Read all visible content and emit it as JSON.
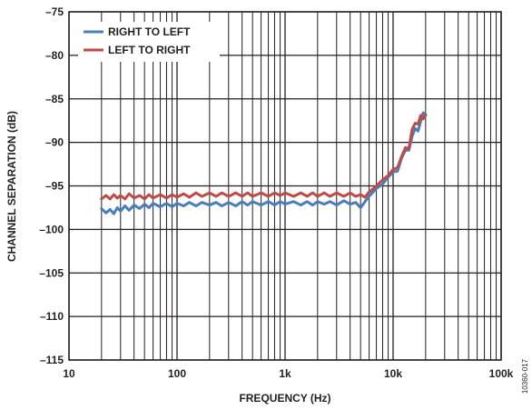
{
  "chart_data": {
    "type": "line",
    "xlabel": "FREQUENCY (Hz)",
    "ylabel": "CHANNEL SEPARATION (dB)",
    "x_scale": "log",
    "xlim": [
      10,
      100000
    ],
    "ylim": [
      -115,
      -75
    ],
    "x_ticks": [
      10,
      100,
      1000,
      10000,
      100000
    ],
    "x_tick_labels": [
      "10",
      "100",
      "1k",
      "10k",
      "100k"
    ],
    "y_ticks": [
      -75,
      -80,
      -85,
      -90,
      -95,
      -100,
      -105,
      -110,
      -115
    ],
    "y_tick_labels": [
      "–75",
      "–80",
      "–85",
      "–90",
      "–95",
      "–100",
      "–105",
      "–110",
      "–115"
    ],
    "grid": true,
    "legend_position": "top-left",
    "figure_id": "10360-017",
    "series": [
      {
        "name": "RIGHT TO LEFT",
        "color": "#4a7ebb",
        "points": [
          [
            20,
            -97.6
          ],
          [
            22,
            -98.1
          ],
          [
            24,
            -97.7
          ],
          [
            26,
            -98.2
          ],
          [
            28,
            -97.5
          ],
          [
            30,
            -97.9
          ],
          [
            33,
            -97.3
          ],
          [
            36,
            -97.8
          ],
          [
            40,
            -97.2
          ],
          [
            45,
            -97.6
          ],
          [
            50,
            -97.1
          ],
          [
            55,
            -97.5
          ],
          [
            60,
            -97.0
          ],
          [
            70,
            -97.4
          ],
          [
            80,
            -97.0
          ],
          [
            90,
            -97.4
          ],
          [
            100,
            -97.0
          ],
          [
            115,
            -97.3
          ],
          [
            130,
            -96.9
          ],
          [
            150,
            -97.3
          ],
          [
            170,
            -96.9
          ],
          [
            200,
            -97.2
          ],
          [
            230,
            -96.9
          ],
          [
            260,
            -97.3
          ],
          [
            300,
            -96.9
          ],
          [
            350,
            -97.3
          ],
          [
            400,
            -96.8
          ],
          [
            450,
            -97.2
          ],
          [
            500,
            -96.8
          ],
          [
            600,
            -97.2
          ],
          [
            700,
            -96.8
          ],
          [
            800,
            -97.2
          ],
          [
            900,
            -96.8
          ],
          [
            1000,
            -97.1
          ],
          [
            1200,
            -96.8
          ],
          [
            1400,
            -97.2
          ],
          [
            1600,
            -96.8
          ],
          [
            1800,
            -97.2
          ],
          [
            2000,
            -96.8
          ],
          [
            2300,
            -97.1
          ],
          [
            2600,
            -96.8
          ],
          [
            3000,
            -97.2
          ],
          [
            3500,
            -96.7
          ],
          [
            4000,
            -97.1
          ],
          [
            4500,
            -96.9
          ],
          [
            5000,
            -97.5
          ],
          [
            5500,
            -96.8
          ],
          [
            6000,
            -96.2
          ],
          [
            7000,
            -95.3
          ],
          [
            8000,
            -94.8
          ],
          [
            9000,
            -94.0
          ],
          [
            10000,
            -93.4
          ],
          [
            11000,
            -93.3
          ],
          [
            12000,
            -91.8
          ],
          [
            13000,
            -90.9
          ],
          [
            14000,
            -90.9
          ],
          [
            15000,
            -89.3
          ],
          [
            16000,
            -88.4
          ],
          [
            17000,
            -88.7
          ],
          [
            18000,
            -87.6
          ],
          [
            19000,
            -86.6
          ],
          [
            20000,
            -86.8
          ]
        ]
      },
      {
        "name": "LEFT TO RIGHT",
        "color": "#be4b48",
        "points": [
          [
            20,
            -96.5
          ],
          [
            22,
            -96.1
          ],
          [
            24,
            -96.5
          ],
          [
            26,
            -96.0
          ],
          [
            28,
            -96.4
          ],
          [
            30,
            -96.1
          ],
          [
            33,
            -96.5
          ],
          [
            36,
            -95.9
          ],
          [
            40,
            -96.4
          ],
          [
            45,
            -96.1
          ],
          [
            50,
            -96.5
          ],
          [
            55,
            -96.0
          ],
          [
            60,
            -96.4
          ],
          [
            70,
            -96.0
          ],
          [
            80,
            -96.4
          ],
          [
            90,
            -96.0
          ],
          [
            100,
            -96.3
          ],
          [
            115,
            -95.9
          ],
          [
            130,
            -96.3
          ],
          [
            150,
            -95.8
          ],
          [
            170,
            -96.2
          ],
          [
            200,
            -95.8
          ],
          [
            230,
            -96.2
          ],
          [
            260,
            -95.8
          ],
          [
            300,
            -96.2
          ],
          [
            350,
            -95.8
          ],
          [
            400,
            -96.2
          ],
          [
            450,
            -95.8
          ],
          [
            500,
            -96.2
          ],
          [
            600,
            -95.8
          ],
          [
            700,
            -96.2
          ],
          [
            800,
            -95.8
          ],
          [
            900,
            -96.1
          ],
          [
            1000,
            -95.8
          ],
          [
            1200,
            -96.2
          ],
          [
            1400,
            -95.8
          ],
          [
            1600,
            -96.2
          ],
          [
            1800,
            -95.8
          ],
          [
            2000,
            -96.2
          ],
          [
            2300,
            -95.8
          ],
          [
            2600,
            -96.2
          ],
          [
            3000,
            -95.8
          ],
          [
            3500,
            -96.2
          ],
          [
            4000,
            -95.8
          ],
          [
            4500,
            -96.2
          ],
          [
            5000,
            -96.0
          ],
          [
            5500,
            -96.3
          ],
          [
            6000,
            -95.7
          ],
          [
            7000,
            -95.0
          ],
          [
            8000,
            -94.3
          ],
          [
            9000,
            -93.8
          ],
          [
            10000,
            -93.1
          ],
          [
            11000,
            -92.9
          ],
          [
            12000,
            -91.6
          ],
          [
            13000,
            -90.6
          ],
          [
            14000,
            -90.7
          ],
          [
            15000,
            -88.5
          ],
          [
            16000,
            -87.8
          ],
          [
            17000,
            -87.9
          ],
          [
            18000,
            -86.9
          ],
          [
            19000,
            -87.3
          ],
          [
            20000,
            -86.9
          ]
        ]
      }
    ]
  }
}
